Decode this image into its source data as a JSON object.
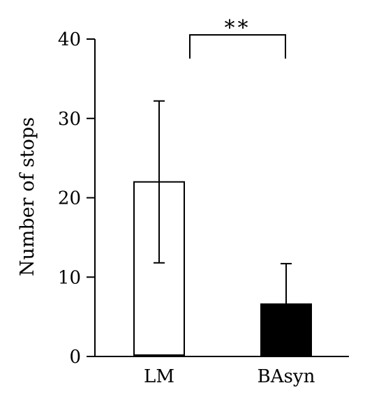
{
  "chart_data": {
    "type": "bar",
    "title": "",
    "xlabel": "",
    "ylabel": "Number of stops",
    "ylim": [
      0,
      40
    ],
    "yticks": [
      0,
      10,
      20,
      30,
      40
    ],
    "grid": false,
    "categories": [
      "LM",
      "BAsyn"
    ],
    "series": [
      {
        "values": [
          22,
          6.6
        ],
        "errors": [
          10.2,
          5.1
        ],
        "fills": [
          "#ffffff",
          "#000000"
        ]
      }
    ],
    "annotations": [
      {
        "type": "significance",
        "between": [
          "LM",
          "BAsyn"
        ],
        "label": "**"
      }
    ]
  }
}
